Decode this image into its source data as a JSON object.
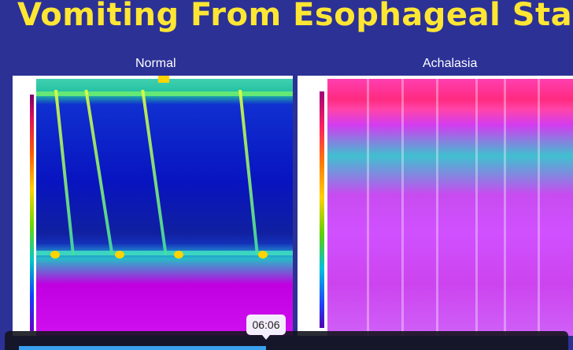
{
  "slide": {
    "title": "Vomiting From Esophageal Stasis",
    "panel_left_label": "Normal",
    "panel_right_label": "Achalasia"
  },
  "player": {
    "hover_time": "06:06",
    "progress_fraction": 0.43
  },
  "colors": {
    "title": "#ffe633",
    "slide_background": "#2c3196",
    "progress": "#3aa0f0"
  }
}
